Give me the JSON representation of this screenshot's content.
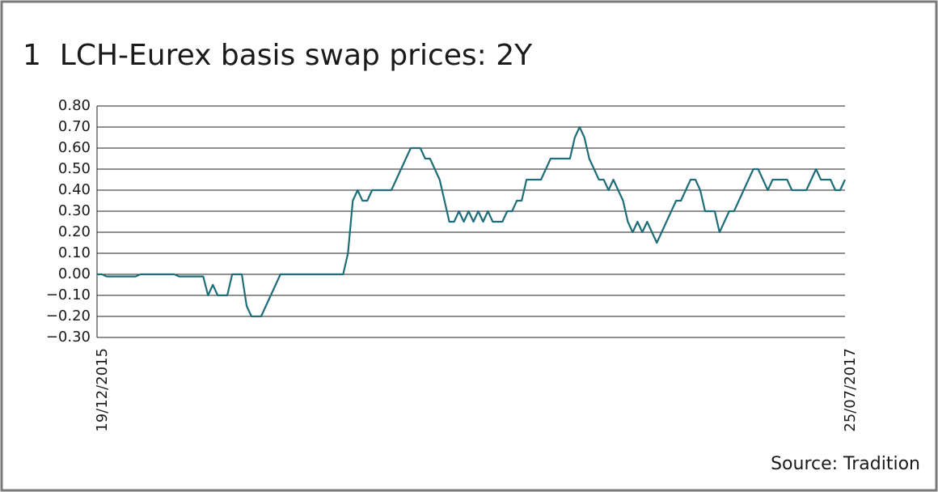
{
  "chart_data": {
    "type": "line",
    "title": "1  LCH-Eurex basis swap prices: 2Y",
    "source": "Source: Tradition",
    "categories": [
      "19/12/2015",
      null,
      null,
      null,
      null,
      null,
      null,
      null,
      null,
      null,
      null,
      null,
      null,
      null,
      null,
      null,
      null,
      null,
      null,
      null,
      null,
      null,
      null,
      null,
      null,
      null,
      null,
      null,
      null,
      null,
      null,
      null,
      null,
      null,
      null,
      null,
      null,
      null,
      null,
      null,
      null,
      null,
      null,
      null,
      null,
      null,
      null,
      null,
      null,
      null,
      null,
      null,
      null,
      null,
      null,
      null,
      null,
      null,
      null,
      null,
      null,
      null,
      null,
      null,
      null,
      null,
      null,
      null,
      null,
      null,
      null,
      null,
      null,
      null,
      null,
      null,
      null,
      null,
      null,
      null,
      null,
      null,
      null,
      null,
      null,
      null,
      null,
      null,
      null,
      null,
      null,
      null,
      null,
      null,
      null,
      null,
      null,
      null,
      null,
      null,
      null,
      null,
      null,
      null,
      null,
      null,
      null,
      null,
      null,
      null,
      null,
      null,
      null,
      null,
      null,
      null,
      null,
      null,
      null,
      null,
      null,
      null,
      null,
      null,
      null,
      null,
      null,
      null,
      null,
      null,
      null,
      null,
      null,
      null,
      null,
      null,
      null,
      null,
      null,
      null,
      null,
      null,
      null,
      null,
      null,
      null,
      null,
      null,
      null,
      null,
      null,
      null,
      null,
      null,
      null,
      "25/07/2017"
    ],
    "series": [
      {
        "color": "#1d6e78",
        "values": [
          0,
          0,
          -0.01,
          -0.01,
          -0.01,
          -0.01,
          -0.01,
          -0.01,
          -0.01,
          0,
          0,
          0,
          0,
          0,
          0,
          0,
          0,
          -0.01,
          -0.01,
          -0.01,
          -0.01,
          -0.01,
          -0.01,
          -0.1,
          -0.05,
          -0.1,
          -0.1,
          -0.1,
          0,
          0,
          0,
          -0.15,
          -0.2,
          -0.2,
          -0.2,
          -0.15,
          -0.1,
          -0.05,
          0,
          0,
          0,
          0,
          0,
          0,
          0,
          0,
          0,
          0,
          0,
          0,
          0,
          0,
          0.1,
          0.35,
          0.4,
          0.35,
          0.35,
          0.4,
          0.4,
          0.4,
          0.4,
          0.4,
          0.45,
          0.5,
          0.55,
          0.6,
          0.6,
          0.6,
          0.55,
          0.55,
          0.5,
          0.45,
          0.35,
          0.25,
          0.25,
          0.3,
          0.25,
          0.3,
          0.25,
          0.3,
          0.25,
          0.3,
          0.25,
          0.25,
          0.25,
          0.3,
          0.3,
          0.35,
          0.35,
          0.45,
          0.45,
          0.45,
          0.45,
          0.5,
          0.55,
          0.55,
          0.55,
          0.55,
          0.55,
          0.65,
          0.7,
          0.65,
          0.55,
          0.5,
          0.45,
          0.45,
          0.4,
          0.45,
          0.4,
          0.35,
          0.25,
          0.2,
          0.25,
          0.2,
          0.25,
          0.2,
          0.15,
          0.2,
          0.25,
          0.3,
          0.35,
          0.35,
          0.4,
          0.45,
          0.45,
          0.4,
          0.3,
          0.3,
          0.3,
          0.2,
          0.25,
          0.3,
          0.3,
          0.35,
          0.4,
          0.45,
          0.5,
          0.5,
          0.45,
          0.4,
          0.45,
          0.45,
          0.45,
          0.45,
          0.4,
          0.4,
          0.4,
          0.4,
          0.45,
          0.5,
          0.45,
          0.45,
          0.45,
          0.4,
          0.4,
          0.45
        ]
      }
    ],
    "ylim": [
      -0.3,
      0.8
    ],
    "yticks": [
      {
        "value": -0.3,
        "label": "−0.30"
      },
      {
        "value": -0.2,
        "label": "−0.20"
      },
      {
        "value": -0.1,
        "label": "−0.10"
      },
      {
        "value": 0,
        "label": "0.00"
      },
      {
        "value": 0.1,
        "label": "0.10"
      },
      {
        "value": 0.2,
        "label": "0.20"
      },
      {
        "value": 0.3,
        "label": "0.30"
      },
      {
        "value": 0.4,
        "label": "0.40"
      },
      {
        "value": 0.5,
        "label": "0.50"
      },
      {
        "value": 0.6,
        "label": "0.60"
      },
      {
        "value": 0.7,
        "label": "0.70"
      },
      {
        "value": 0.8,
        "label": "0.80"
      }
    ],
    "grid": true
  }
}
